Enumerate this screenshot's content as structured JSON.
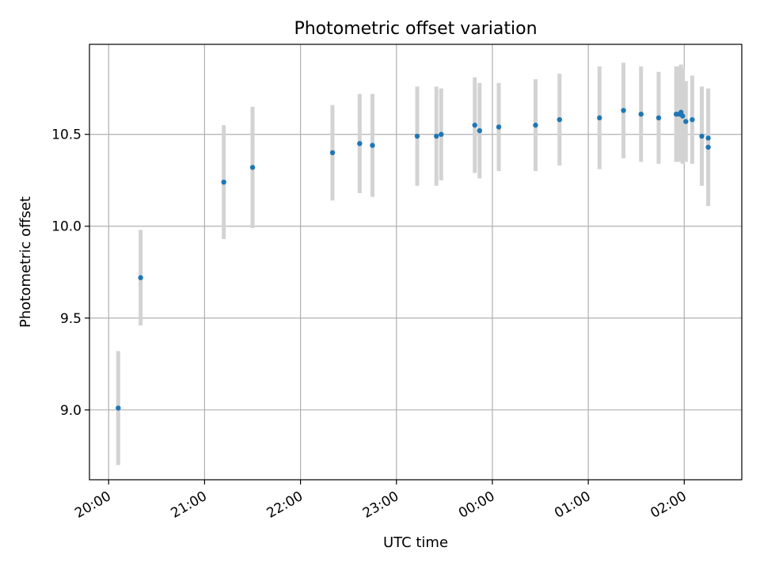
{
  "chart_data": {
    "type": "scatter",
    "title": "Photometric offset variation",
    "xlabel": "UTC time",
    "ylabel": "Photometric offset",
    "x_tick_labels": [
      "20:00",
      "21:00",
      "22:00",
      "23:00",
      "00:00",
      "01:00",
      "02:00"
    ],
    "y_tick_labels": [
      "9.0",
      "9.5",
      "10.0",
      "10.5"
    ],
    "y_ticks": [
      9.0,
      9.5,
      10.0,
      10.5
    ],
    "x_ticks": [
      "2024-01-01T20:00",
      "2024-01-01T21:00",
      "2024-01-01T22:00",
      "2024-01-01T23:00",
      "2024-01-02T00:00",
      "2024-01-02T01:00",
      "2024-01-02T02:00"
    ],
    "xlim": [
      "2024-01-01T19:48",
      "2024-01-02T02:36"
    ],
    "ylim": [
      8.62,
      10.99
    ],
    "grid": true,
    "marker_color": "#1f77b4",
    "errorbar_color": "#d3d3d3",
    "points": [
      {
        "t": "2024-01-01T20:06",
        "y": 9.01,
        "err": 0.31
      },
      {
        "t": "2024-01-01T20:20",
        "y": 9.72,
        "err": 0.26
      },
      {
        "t": "2024-01-01T21:12",
        "y": 10.24,
        "err": 0.31
      },
      {
        "t": "2024-01-01T21:30",
        "y": 10.32,
        "err": 0.33
      },
      {
        "t": "2024-01-01T22:20",
        "y": 10.4,
        "err": 0.26
      },
      {
        "t": "2024-01-01T22:37",
        "y": 10.45,
        "err": 0.27
      },
      {
        "t": "2024-01-01T22:45",
        "y": 10.44,
        "err": 0.28
      },
      {
        "t": "2024-01-01T23:13",
        "y": 10.49,
        "err": 0.27
      },
      {
        "t": "2024-01-01T23:25",
        "y": 10.49,
        "err": 0.27
      },
      {
        "t": "2024-01-01T23:28",
        "y": 10.5,
        "err": 0.25
      },
      {
        "t": "2024-01-01T23:49",
        "y": 10.55,
        "err": 0.26
      },
      {
        "t": "2024-01-01T23:52",
        "y": 10.52,
        "err": 0.26
      },
      {
        "t": "2024-01-02T00:04",
        "y": 10.54,
        "err": 0.24
      },
      {
        "t": "2024-01-02T00:27",
        "y": 10.55,
        "err": 0.25
      },
      {
        "t": "2024-01-02T00:42",
        "y": 10.58,
        "err": 0.25
      },
      {
        "t": "2024-01-02T01:07",
        "y": 10.59,
        "err": 0.28
      },
      {
        "t": "2024-01-02T01:22",
        "y": 10.63,
        "err": 0.26
      },
      {
        "t": "2024-01-02T01:33",
        "y": 10.61,
        "err": 0.26
      },
      {
        "t": "2024-01-02T01:44",
        "y": 10.59,
        "err": 0.25
      },
      {
        "t": "2024-01-02T01:55",
        "y": 10.61,
        "err": 0.26
      },
      {
        "t": "2024-01-02T01:57",
        "y": 10.61,
        "err": 0.26
      },
      {
        "t": "2024-01-02T01:58",
        "y": 10.62,
        "err": 0.26
      },
      {
        "t": "2024-01-02T01:59",
        "y": 10.6,
        "err": 0.26
      },
      {
        "t": "2024-01-02T02:01",
        "y": 10.57,
        "err": 0.22
      },
      {
        "t": "2024-01-02T02:05",
        "y": 10.58,
        "err": 0.24
      },
      {
        "t": "2024-01-02T02:11",
        "y": 10.49,
        "err": 0.27
      },
      {
        "t": "2024-01-02T02:15",
        "y": 10.48,
        "err": 0.26
      },
      {
        "t": "2024-01-02T02:15",
        "y": 10.43,
        "err": 0.32
      }
    ]
  }
}
